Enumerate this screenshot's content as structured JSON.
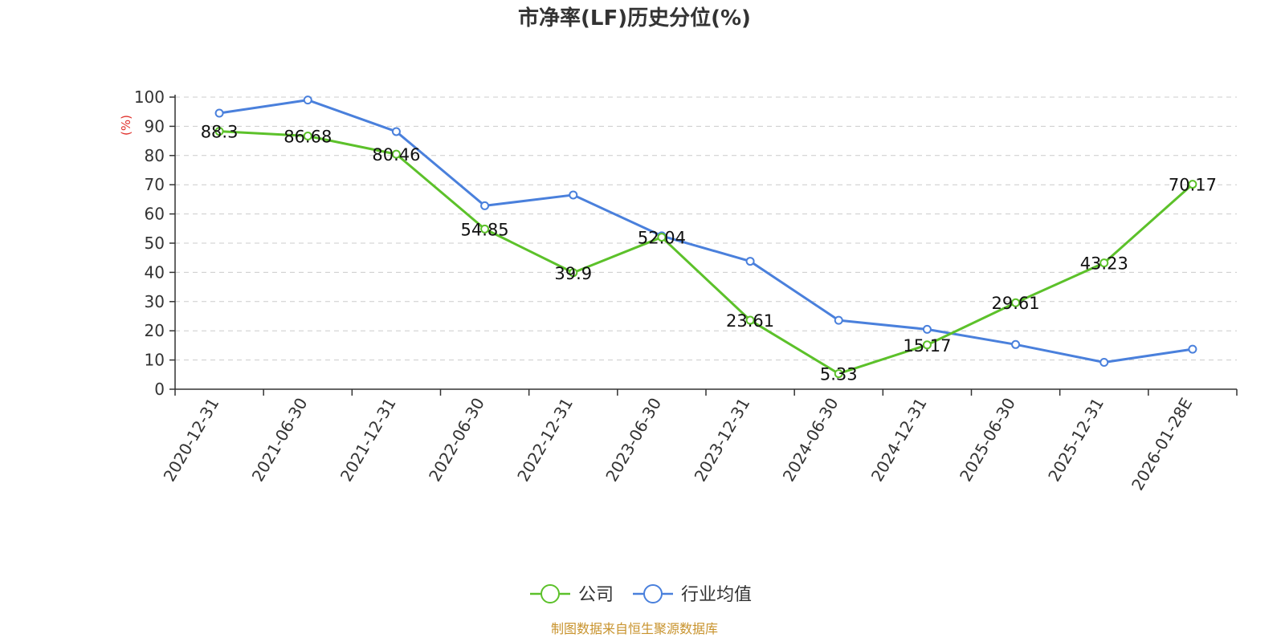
{
  "chart_data": {
    "type": "line",
    "title": "市净率(LF)历史分位(%)",
    "ylabel": "(%)",
    "xlabel": "",
    "categories": [
      "2020-12-31",
      "2021-06-30",
      "2021-12-31",
      "2022-06-30",
      "2022-12-31",
      "2023-06-30",
      "2023-12-31",
      "2024-06-30",
      "2024-12-31",
      "2025-06-30",
      "2025-12-31",
      "2026-01-28E"
    ],
    "ylim": [
      0,
      100
    ],
    "yticks": [
      0,
      10,
      20,
      30,
      40,
      50,
      60,
      70,
      80,
      90,
      100
    ],
    "grid": true,
    "legend_position": "bottom-center",
    "series": [
      {
        "name": "公司",
        "color": "#5cc12a",
        "values": [
          88.3,
          86.68,
          80.46,
          54.85,
          39.9,
          52.04,
          23.61,
          5.33,
          15.17,
          29.61,
          43.23,
          70.17
        ],
        "labels": [
          "88.3",
          "86.68",
          "80.46",
          "54.85",
          "39.9",
          "52.04",
          "23.61",
          "5.33",
          "15.17",
          "29.61",
          "43.23",
          "70.17"
        ]
      },
      {
        "name": "行业均值",
        "color": "#4a80dc",
        "values": [
          94.5,
          99.0,
          88.2,
          62.8,
          66.5,
          52.5,
          43.8,
          23.6,
          20.5,
          15.3,
          9.2,
          13.7
        ]
      }
    ],
    "ylabel_color": "#e0302b"
  },
  "source_text": "制图数据来自恒生聚源数据库",
  "source_color": "#c8932d"
}
